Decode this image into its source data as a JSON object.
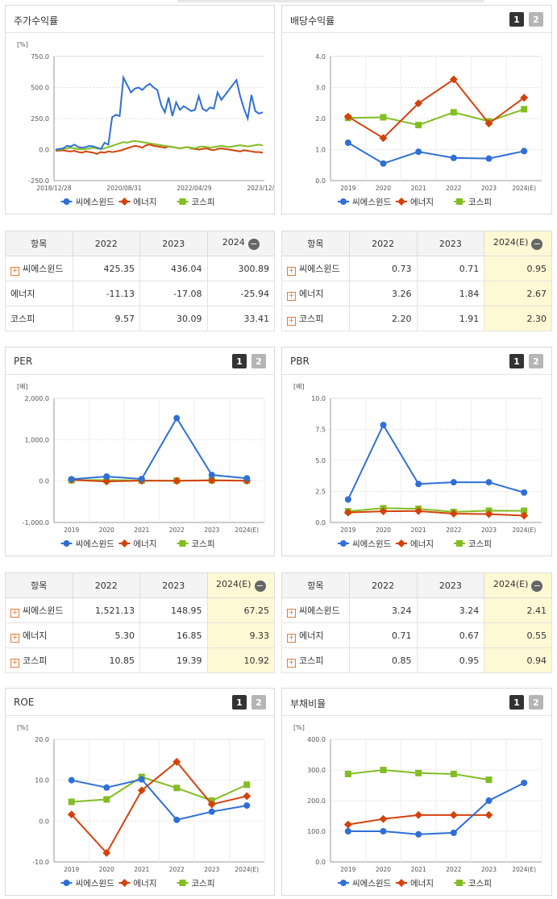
{
  "panels": {
    "stock_return": {
      "title": "주가수익률"
    },
    "dividend": {
      "title": "배당수익률",
      "pages": [
        "1",
        "2"
      ]
    },
    "per": {
      "title": "PER",
      "pages": [
        "1",
        "2"
      ]
    },
    "pbr": {
      "title": "PBR",
      "pages": [
        "1",
        "2"
      ]
    },
    "roe": {
      "title": "ROE",
      "pages": [
        "1",
        "2"
      ]
    },
    "debt": {
      "title": "부채비율",
      "pages": [
        "1",
        "2"
      ]
    }
  },
  "legend": [
    "씨에스윈드",
    "에너지",
    "코스피"
  ],
  "colors": {
    "씨에스윈드": "#2f6fd6",
    "에너지": "#d4420c",
    "코스피": "#82bd22"
  },
  "tables": {
    "stock_return": {
      "header": [
        "항목",
        "2022",
        "2023",
        "2024"
      ],
      "minus": "−",
      "highlight_last": false,
      "rows": [
        {
          "name": "씨에스윈드",
          "plus": true,
          "values": [
            "425.35",
            "436.04",
            "300.89"
          ]
        },
        {
          "name": "에너지",
          "plus": false,
          "values": [
            "-11.13",
            "-17.08",
            "-25.94"
          ]
        },
        {
          "name": "코스피",
          "plus": false,
          "values": [
            "9.57",
            "30.09",
            "33.41"
          ]
        }
      ]
    },
    "dividend": {
      "header": [
        "항목",
        "2022",
        "2023",
        "2024(E)"
      ],
      "minus": "−",
      "highlight_last": true,
      "rows": [
        {
          "name": "씨에스윈드",
          "plus": true,
          "values": [
            "0.73",
            "0.71",
            "0.95"
          ]
        },
        {
          "name": "에너지",
          "plus": true,
          "values": [
            "3.26",
            "1.84",
            "2.67"
          ]
        },
        {
          "name": "코스피",
          "plus": true,
          "values": [
            "2.20",
            "1.91",
            "2.30"
          ]
        }
      ]
    },
    "per": {
      "header": [
        "항목",
        "2022",
        "2023",
        "2024(E)"
      ],
      "minus": "−",
      "highlight_last": true,
      "rows": [
        {
          "name": "씨에스윈드",
          "plus": true,
          "values": [
            "1,521.13",
            "148.95",
            "67.25"
          ]
        },
        {
          "name": "에너지",
          "plus": true,
          "values": [
            "5.30",
            "16.85",
            "9.33"
          ]
        },
        {
          "name": "코스피",
          "plus": true,
          "values": [
            "10.85",
            "19.39",
            "10.92"
          ]
        }
      ]
    },
    "pbr": {
      "header": [
        "항목",
        "2022",
        "2023",
        "2024(E)"
      ],
      "minus": "−",
      "highlight_last": true,
      "rows": [
        {
          "name": "씨에스윈드",
          "plus": true,
          "values": [
            "3.24",
            "3.24",
            "2.41"
          ]
        },
        {
          "name": "에너지",
          "plus": true,
          "values": [
            "0.71",
            "0.67",
            "0.55"
          ]
        },
        {
          "name": "코스피",
          "plus": true,
          "values": [
            "0.85",
            "0.95",
            "0.94"
          ]
        }
      ]
    }
  },
  "chart_data": [
    {
      "id": "stock_return",
      "type": "line",
      "unit": "[%]",
      "yticks": [
        "750.0",
        "500.0",
        "250.0",
        "0.0",
        "-250.0"
      ],
      "ylim": [
        -250,
        750
      ],
      "xticks": [
        "2018/12/28",
        "2020/08/31",
        "2022/04/29",
        "2023/12/28"
      ],
      "series": [
        {
          "name": "씨에스윈드",
          "values": [
            0,
            5,
            10,
            30,
            25,
            40,
            20,
            15,
            20,
            30,
            25,
            15,
            5,
            55,
            40,
            260,
            280,
            270,
            580,
            520,
            460,
            490,
            500,
            480,
            510,
            530,
            500,
            480,
            360,
            300,
            420,
            270,
            380,
            320,
            350,
            330,
            310,
            320,
            430,
            330,
            310,
            340,
            330,
            460,
            400,
            440,
            480,
            520,
            560,
            430,
            330,
            250,
            440,
            310,
            290,
            300
          ]
        },
        {
          "name": "에너지",
          "values": [
            -10,
            -8,
            -5,
            -12,
            -15,
            -10,
            -20,
            -25,
            -15,
            -20,
            -25,
            -35,
            -20,
            -25,
            -15,
            -20,
            -15,
            -10,
            0,
            10,
            20,
            30,
            25,
            15,
            35,
            40,
            30,
            25,
            20,
            15,
            25,
            20,
            15,
            10,
            15,
            20,
            10,
            5,
            0,
            5,
            10,
            0,
            -5,
            5,
            10,
            5,
            0,
            -5,
            -10,
            -15,
            -5,
            -10,
            -15,
            -20,
            -20,
            -25
          ]
        },
        {
          "name": "코스피",
          "values": [
            -5,
            0,
            5,
            10,
            15,
            10,
            5,
            0,
            5,
            10,
            15,
            10,
            5,
            10,
            20,
            30,
            40,
            50,
            60,
            55,
            65,
            70,
            65,
            60,
            55,
            50,
            45,
            40,
            35,
            30,
            25,
            20,
            15,
            10,
            15,
            20,
            15,
            10,
            20,
            25,
            20,
            15,
            20,
            25,
            30,
            25,
            20,
            25,
            30,
            35,
            30,
            25,
            30,
            35,
            40,
            33
          ]
        }
      ]
    },
    {
      "id": "dividend",
      "type": "line",
      "unit": "",
      "yticks": [
        "4.0",
        "3.0",
        "2.0",
        "1.0",
        "0.0"
      ],
      "ylim": [
        0,
        4
      ],
      "categories": [
        "2019",
        "2020",
        "2021",
        "2022",
        "2023",
        "2024(E)"
      ],
      "series": [
        {
          "name": "씨에스윈드",
          "values": [
            1.22,
            0.55,
            0.93,
            0.73,
            0.71,
            0.95
          ]
        },
        {
          "name": "에너지",
          "values": [
            2.06,
            1.37,
            2.49,
            3.26,
            1.84,
            2.67
          ]
        },
        {
          "name": "코스피",
          "values": [
            2.02,
            2.04,
            1.79,
            2.2,
            1.91,
            2.3
          ]
        }
      ]
    },
    {
      "id": "per",
      "type": "line",
      "unit": "[배]",
      "yticks": [
        "2,000.0",
        "1,000.0",
        "0.0",
        "-1,000.0"
      ],
      "ylim": [
        -1000,
        2000
      ],
      "categories": [
        "2019",
        "2020",
        "2021",
        "2022",
        "2023",
        "2024(E)"
      ],
      "series": [
        {
          "name": "씨에스윈드",
          "values": [
            45,
            110,
            50,
            1521.13,
            148.95,
            67.25
          ]
        },
        {
          "name": "에너지",
          "values": [
            30,
            -10,
            10,
            5.3,
            16.85,
            9.33
          ]
        },
        {
          "name": "코스피",
          "values": [
            20,
            25,
            12,
            10.85,
            19.39,
            10.92
          ]
        }
      ]
    },
    {
      "id": "pbr",
      "type": "line",
      "unit": "[배]",
      "yticks": [
        "10.0",
        "7.5",
        "5.0",
        "2.5",
        "0.0"
      ],
      "ylim": [
        0,
        10
      ],
      "categories": [
        "2019",
        "2020",
        "2021",
        "2022",
        "2023",
        "2024(E)"
      ],
      "series": [
        {
          "name": "씨에스윈드",
          "values": [
            1.85,
            7.85,
            3.1,
            3.24,
            3.24,
            2.41
          ]
        },
        {
          "name": "에너지",
          "values": [
            0.8,
            0.9,
            0.92,
            0.71,
            0.67,
            0.55
          ]
        },
        {
          "name": "코스피",
          "values": [
            0.9,
            1.15,
            1.1,
            0.85,
            0.95,
            0.94
          ]
        }
      ]
    },
    {
      "id": "roe",
      "type": "line",
      "unit": "[%]",
      "yticks": [
        "20.0",
        "10.0",
        "0.0",
        "-10.0"
      ],
      "ylim": [
        -10,
        20
      ],
      "categories": [
        "2019",
        "2020",
        "2021",
        "2022",
        "2023",
        "2024(E)"
      ],
      "series": [
        {
          "name": "씨에스윈드",
          "values": [
            10.0,
            8.2,
            10.2,
            0.3,
            2.3,
            3.8
          ]
        },
        {
          "name": "에너지",
          "values": [
            1.6,
            -7.8,
            7.5,
            14.5,
            4.1,
            6.1
          ]
        },
        {
          "name": "코스피",
          "values": [
            4.7,
            5.3,
            10.8,
            8.1,
            5.0,
            8.9
          ]
        }
      ]
    },
    {
      "id": "debt",
      "type": "line",
      "unit": "[%]",
      "yticks": [
        "400.0",
        "300.0",
        "200.0",
        "100.0",
        "0.0"
      ],
      "ylim": [
        0,
        400
      ],
      "categories": [
        "2019",
        "2020",
        "2021",
        "2022",
        "2023",
        "2024(E)"
      ],
      "series": [
        {
          "name": "씨에스윈드",
          "values": [
            100,
            100,
            90,
            95,
            200,
            258
          ]
        },
        {
          "name": "에너지",
          "values": [
            122,
            140,
            153,
            153,
            153,
            null
          ]
        },
        {
          "name": "코스피",
          "values": [
            287,
            300,
            290,
            287,
            268,
            null
          ]
        }
      ]
    }
  ]
}
